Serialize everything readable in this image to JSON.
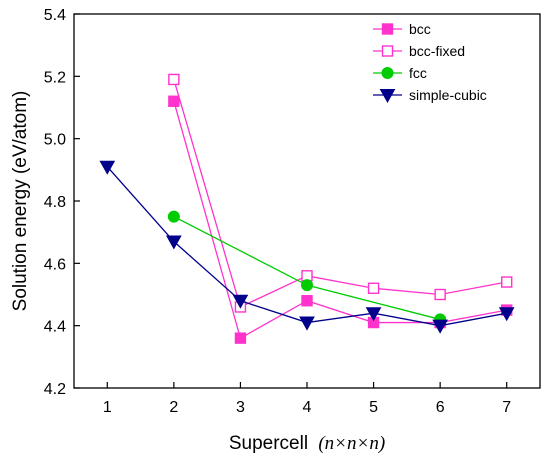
{
  "chart_data": {
    "type": "line",
    "xlabel": "Supercell",
    "xlabel_suffix": "(n×n×n)",
    "ylabel": "Solution energy (eV/atom)",
    "xlim": [
      0.5,
      7.5
    ],
    "ylim": [
      4.2,
      5.4
    ],
    "x_ticks": [
      1,
      2,
      3,
      4,
      5,
      6,
      7
    ],
    "y_ticks": [
      4.2,
      4.4,
      4.6,
      4.8,
      5.0,
      5.2,
      5.4
    ],
    "y_tick_labels": [
      "4.2",
      "4.4",
      "4.6",
      "4.8",
      "5.0",
      "5.2",
      "5.4"
    ],
    "grid": false,
    "legend_position": "top-right",
    "series": [
      {
        "name": "bcc",
        "color": "#ff33cc",
        "marker": "square-filled",
        "x": [
          2,
          3,
          4,
          5,
          6,
          7
        ],
        "values": [
          5.12,
          4.36,
          4.48,
          4.41,
          4.41,
          4.45
        ]
      },
      {
        "name": "bcc-fixed",
        "color": "#ff33cc",
        "marker": "square-open",
        "x": [
          2,
          3,
          4,
          5,
          6,
          7
        ],
        "values": [
          5.19,
          4.46,
          4.56,
          4.52,
          4.5,
          4.54
        ]
      },
      {
        "name": "fcc",
        "color": "#00cc00",
        "marker": "circle-filled",
        "x": [
          2,
          4,
          6
        ],
        "values": [
          4.75,
          4.53,
          4.42
        ]
      },
      {
        "name": "simple-cubic",
        "color": "#00008b",
        "marker": "triangle-down-filled",
        "x": [
          1,
          2,
          3,
          4,
          5,
          6,
          7
        ],
        "values": [
          4.91,
          4.67,
          4.48,
          4.41,
          4.44,
          4.4,
          4.44
        ]
      }
    ]
  }
}
